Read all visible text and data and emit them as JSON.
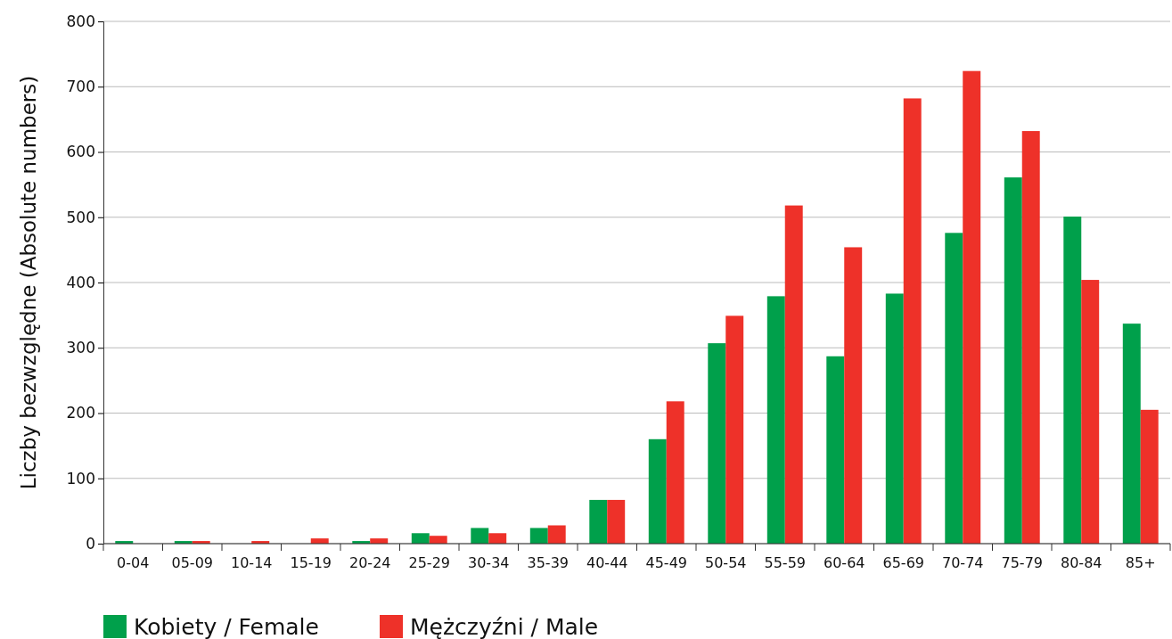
{
  "chart_data": {
    "type": "bar",
    "ylabel": "Liczby bezwzględne (Absolute numbers)",
    "categories": [
      "0-04",
      "05-09",
      "10-14",
      "15-19",
      "20-24",
      "25-29",
      "30-34",
      "35-39",
      "40-44",
      "45-49",
      "50-54",
      "55-59",
      "60-64",
      "65-69",
      "70-74",
      "75-79",
      "80-84",
      "85+"
    ],
    "series": [
      {
        "name": "Kobiety / Female",
        "color": "#00a04b",
        "values": [
          4,
          4,
          0,
          0,
          4,
          16,
          24,
          24,
          67,
          160,
          307,
          379,
          287,
          383,
          476,
          561,
          501,
          337
        ]
      },
      {
        "name": "Mężczyźni / Male",
        "color": "#ee3129",
        "values": [
          0,
          4,
          4,
          8,
          8,
          12,
          16,
          28,
          67,
          218,
          349,
          518,
          454,
          682,
          724,
          632,
          404,
          205
        ]
      }
    ],
    "ylim": [
      0,
      800
    ],
    "yticks": [
      0,
      100,
      200,
      300,
      400,
      500,
      600,
      700,
      800
    ],
    "grid": "y",
    "legend": "bottom left"
  }
}
